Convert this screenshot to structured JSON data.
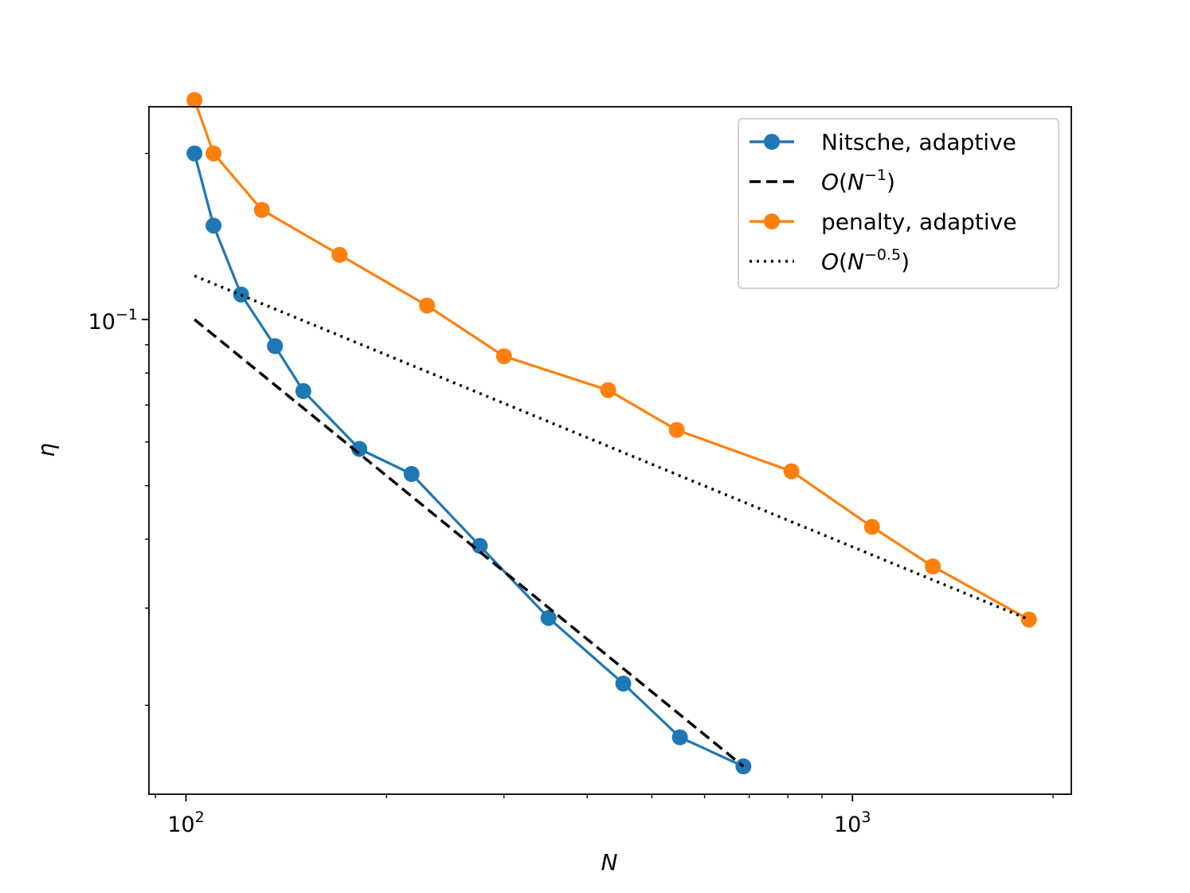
{
  "chart_data": {
    "type": "line",
    "xscale": "log",
    "yscale": "log",
    "xlabel": "N",
    "ylabel": "η",
    "xlim": [
      88,
      2130
    ],
    "ylim": [
      0.0138,
      0.243
    ],
    "x_ticks": [
      {
        "value": 100,
        "base": "10",
        "exp": "2"
      },
      {
        "value": 1000,
        "base": "10",
        "exp": "3"
      }
    ],
    "y_ticks": [
      {
        "value": 0.1,
        "base": "10",
        "exp": "−1"
      }
    ],
    "series": [
      {
        "name": "Nitsche, adaptive",
        "color": "#1f77b4",
        "style": "solid",
        "marker": true,
        "x": [
          103,
          110,
          121,
          136,
          150,
          182,
          218,
          276,
          350,
          453,
          551,
          686
        ],
        "y": [
          0.2,
          0.148,
          0.111,
          0.0895,
          0.0742,
          0.0583,
          0.0525,
          0.0389,
          0.0288,
          0.0219,
          0.0175,
          0.0155
        ]
      },
      {
        "name": "O(N^-1)",
        "color": "#000000",
        "style": "dashed",
        "marker": false,
        "x": [
          103,
          686
        ],
        "y": [
          0.1,
          0.0155
        ]
      },
      {
        "name": "penalty, adaptive",
        "color": "#ff7f0e",
        "style": "solid",
        "marker": true,
        "x": [
          103,
          110,
          130,
          170,
          230,
          300,
          430,
          545,
          810,
          1070,
          1320,
          1840
        ],
        "y": [
          0.25,
          0.2,
          0.158,
          0.131,
          0.106,
          0.0858,
          0.0745,
          0.0631,
          0.0531,
          0.0421,
          0.0357,
          0.0286
        ]
      },
      {
        "name": "O(N^-0.5)",
        "color": "#000000",
        "style": "dotted",
        "marker": false,
        "x": [
          103,
          1840
        ],
        "y": [
          0.12,
          0.0286
        ]
      }
    ],
    "legend": {
      "position": "top-right",
      "entries": [
        {
          "kind": "text",
          "text": "Nitsche, adaptive"
        },
        {
          "kind": "order",
          "base": "N",
          "exp": "−1"
        },
        {
          "kind": "text",
          "text": "penalty, adaptive"
        },
        {
          "kind": "order",
          "base": "N",
          "exp": "−0.5"
        }
      ]
    }
  }
}
